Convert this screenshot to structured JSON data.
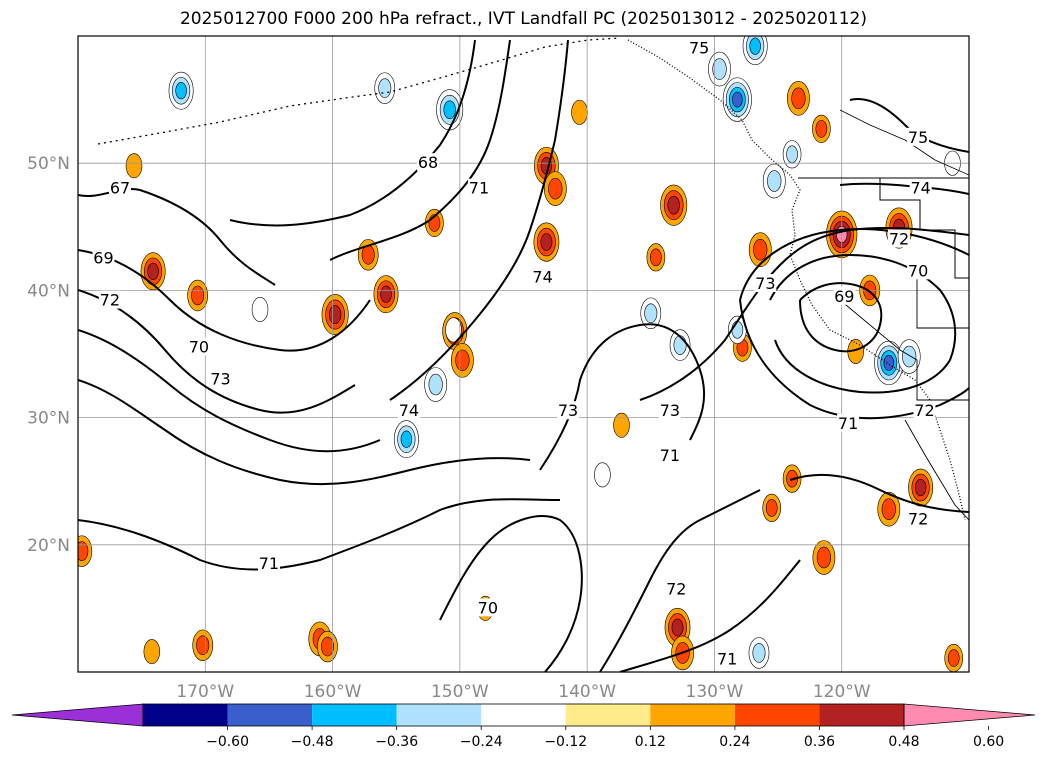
{
  "title": "2025012700 F000 200 hPa refract., IVT Landfall PC (2025013012 - 2025020112)",
  "chart_data": {
    "type": "map-contour",
    "title": "2025012700 F000 200 hPa refract., IVT Landfall PC (2025013012 - 2025020112)",
    "lon_range": [
      -180,
      -110
    ],
    "lat_range": [
      10,
      60
    ],
    "x_ticks": [
      -170,
      -160,
      -150,
      -140,
      -130,
      -120
    ],
    "x_tick_labels": [
      "170°W",
      "160°W",
      "150°W",
      "140°W",
      "130°W",
      "120°W"
    ],
    "y_ticks": [
      20,
      30,
      40,
      50
    ],
    "y_tick_labels": [
      "20°N",
      "30°N",
      "40°N",
      "50°N"
    ],
    "grid": true,
    "colorbar": {
      "boundaries": [
        -0.72,
        -0.6,
        -0.48,
        -0.36,
        -0.24,
        -0.12,
        0.12,
        0.24,
        0.36,
        0.48,
        0.6,
        0.72
      ],
      "tick_values": [
        -0.6,
        -0.48,
        -0.36,
        -0.24,
        -0.12,
        0.12,
        0.24,
        0.36,
        0.48,
        0.6
      ],
      "tick_labels": [
        "−0.60",
        "−0.48",
        "−0.36",
        "−0.24",
        "−0.12",
        "0.12",
        "0.24",
        "0.36",
        "0.48",
        "0.60"
      ],
      "colors": [
        "#9b30d9",
        "#00008b",
        "#3a5fcd",
        "#00bfff",
        "#b0e2ff",
        "#ffffff",
        "#ffeb8a",
        "#ffa500",
        "#ff4500",
        "#b22222",
        "#ff8cb0"
      ],
      "extend": "both"
    },
    "contour_labels": [
      {
        "text": "67",
        "lon": -176.7,
        "lat": 48.0
      },
      {
        "text": "69",
        "lon": -178.0,
        "lat": 42.5
      },
      {
        "text": "72",
        "lon": -177.5,
        "lat": 39.2
      },
      {
        "text": "70",
        "lon": -170.5,
        "lat": 35.5
      },
      {
        "text": "73",
        "lon": -168.8,
        "lat": 33.0
      },
      {
        "text": "68",
        "lon": -152.5,
        "lat": 50.0
      },
      {
        "text": "71",
        "lon": -148.5,
        "lat": 48.0
      },
      {
        "text": "74",
        "lon": -154.0,
        "lat": 30.5
      },
      {
        "text": "74",
        "lon": -143.5,
        "lat": 41.0
      },
      {
        "text": "73",
        "lon": -141.5,
        "lat": 30.5
      },
      {
        "text": "73",
        "lon": -133.5,
        "lat": 30.5
      },
      {
        "text": "71",
        "lon": -133.5,
        "lat": 27.0
      },
      {
        "text": "73",
        "lon": -126.0,
        "lat": 40.5
      },
      {
        "text": "71",
        "lon": -165.0,
        "lat": 18.5
      },
      {
        "text": "70",
        "lon": -147.8,
        "lat": 15.0
      },
      {
        "text": "72",
        "lon": -133.0,
        "lat": 16.5
      },
      {
        "text": "71",
        "lon": -129.0,
        "lat": 11.0
      },
      {
        "text": "69",
        "lon": -119.8,
        "lat": 39.5
      },
      {
        "text": "70",
        "lon": -114.0,
        "lat": 41.5
      },
      {
        "text": "72",
        "lon": -115.5,
        "lat": 44.0
      },
      {
        "text": "74",
        "lon": -113.8,
        "lat": 48.0
      },
      {
        "text": "75",
        "lon": -114.0,
        "lat": 52.0
      },
      {
        "text": "71",
        "lon": -119.5,
        "lat": 29.5
      },
      {
        "text": "72",
        "lon": -114.0,
        "lat": 22.0
      },
      {
        "text": "72",
        "lon": -113.5,
        "lat": 30.5
      },
      {
        "text": "75",
        "lon": -131.2,
        "lat": 59.0
      }
    ],
    "anomaly_blobs": [
      {
        "lon": -174.1,
        "lat": 41.5,
        "value": 0.4
      },
      {
        "lon": -170.6,
        "lat": 39.6,
        "value": 0.3
      },
      {
        "lon": -175.6,
        "lat": 49.8,
        "value": 0.2
      },
      {
        "lon": -159.8,
        "lat": 38.1,
        "value": 0.45
      },
      {
        "lon": -155.8,
        "lat": 39.7,
        "value": 0.4
      },
      {
        "lon": -157.2,
        "lat": 42.8,
        "value": 0.3
      },
      {
        "lon": -152.0,
        "lat": 45.3,
        "value": 0.25
      },
      {
        "lon": -143.2,
        "lat": 49.8,
        "value": 0.4
      },
      {
        "lon": -142.5,
        "lat": 48.0,
        "value": 0.35
      },
      {
        "lon": -143.2,
        "lat": 43.8,
        "value": 0.42
      },
      {
        "lon": -150.4,
        "lat": 36.8,
        "value": 0.4
      },
      {
        "lon": -149.8,
        "lat": 34.5,
        "value": 0.35
      },
      {
        "lon": -133.2,
        "lat": 46.7,
        "value": 0.45
      },
      {
        "lon": -134.6,
        "lat": 42.6,
        "value": 0.25
      },
      {
        "lon": -140.6,
        "lat": 54.0,
        "value": 0.2
      },
      {
        "lon": -120.0,
        "lat": 44.4,
        "value": 0.55
      },
      {
        "lon": -115.5,
        "lat": 44.9,
        "value": 0.45
      },
      {
        "lon": -126.4,
        "lat": 43.2,
        "value": 0.35
      },
      {
        "lon": -117.8,
        "lat": 40.0,
        "value": 0.3
      },
      {
        "lon": -113.8,
        "lat": 24.5,
        "value": 0.4
      },
      {
        "lon": -116.3,
        "lat": 22.8,
        "value": 0.35
      },
      {
        "lon": -121.4,
        "lat": 19.0,
        "value": 0.35
      },
      {
        "lon": -132.9,
        "lat": 13.5,
        "value": 0.42
      },
      {
        "lon": -132.5,
        "lat": 11.5,
        "value": 0.35
      },
      {
        "lon": -170.2,
        "lat": 12.1,
        "value": 0.3
      },
      {
        "lon": -148.0,
        "lat": 15.0,
        "value": 0.2
      },
      {
        "lon": -161.0,
        "lat": 12.6,
        "value": 0.35
      },
      {
        "lon": -125.5,
        "lat": 22.9,
        "value": 0.25
      },
      {
        "lon": -123.9,
        "lat": 25.2,
        "value": 0.25
      },
      {
        "lon": -111.2,
        "lat": 11.1,
        "value": 0.25
      },
      {
        "lon": -123.4,
        "lat": 55.1,
        "value": 0.35
      },
      {
        "lon": -121.6,
        "lat": 52.7,
        "value": 0.25
      },
      {
        "lon": -118.9,
        "lat": 35.2,
        "value": 0.2
      },
      {
        "lon": -127.8,
        "lat": 35.5,
        "value": 0.25
      },
      {
        "lon": -137.3,
        "lat": 29.4,
        "value": 0.2
      },
      {
        "lon": -160.4,
        "lat": 12.0,
        "value": 0.3
      },
      {
        "lon": -179.7,
        "lat": 19.5,
        "value": 0.3
      },
      {
        "lon": -174.2,
        "lat": 11.6,
        "value": 0.2
      },
      {
        "lon": -138.8,
        "lat": 25.5,
        "value": -0.2
      },
      {
        "lon": -171.9,
        "lat": 55.7,
        "value": -0.4
      },
      {
        "lon": -150.8,
        "lat": 54.2,
        "value": -0.45
      },
      {
        "lon": -155.9,
        "lat": 55.9,
        "value": -0.3
      },
      {
        "lon": -128.2,
        "lat": 55.0,
        "value": -0.5
      },
      {
        "lon": -129.6,
        "lat": 57.4,
        "value": -0.35
      },
      {
        "lon": -126.8,
        "lat": 59.2,
        "value": -0.4
      },
      {
        "lon": -125.3,
        "lat": 48.6,
        "value": -0.35
      },
      {
        "lon": -135.0,
        "lat": 38.2,
        "value": -0.3
      },
      {
        "lon": -132.7,
        "lat": 35.7,
        "value": -0.3
      },
      {
        "lon": -128.2,
        "lat": 36.9,
        "value": -0.25
      },
      {
        "lon": -116.3,
        "lat": 34.3,
        "value": -0.5
      },
      {
        "lon": -114.7,
        "lat": 34.8,
        "value": -0.35
      },
      {
        "lon": -154.2,
        "lat": 28.3,
        "value": -0.4
      },
      {
        "lon": -151.9,
        "lat": 32.6,
        "value": -0.35
      },
      {
        "lon": -165.7,
        "lat": 38.5,
        "value": -0.2
      },
      {
        "lon": -150.5,
        "lat": 36.9,
        "value": -0.2
      },
      {
        "lon": -126.5,
        "lat": 11.5,
        "value": -0.3
      },
      {
        "lon": -123.9,
        "lat": 50.7,
        "value": -0.25
      },
      {
        "lon": -111.3,
        "lat": 50.0,
        "value": -0.2
      }
    ]
  }
}
